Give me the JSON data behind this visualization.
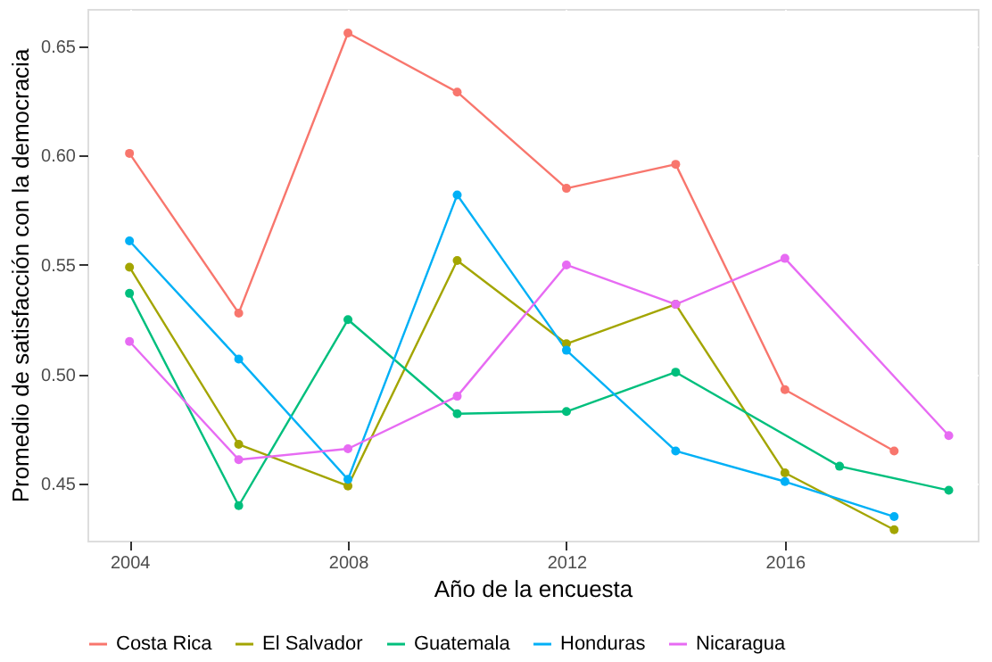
{
  "chart_data": {
    "type": "line",
    "xlabel": "Año de la encuesta",
    "ylabel": "Promedio de satisfacción con la democracia",
    "xlim": [
      2003.23,
      2019.53
    ],
    "xticks": [
      2004,
      2008,
      2012,
      2016
    ],
    "ylim": [
      0.424,
      0.667
    ],
    "yticks": [
      {
        "value": 0.45,
        "label": "0.45"
      },
      {
        "value": 0.5,
        "label": "0.50"
      },
      {
        "value": 0.55,
        "label": "0.55"
      },
      {
        "value": 0.6,
        "label": "0.60"
      },
      {
        "value": 0.65,
        "label": "0.65"
      }
    ],
    "grid": true,
    "legend": "bottom",
    "marker": "circle",
    "line_style": "solid",
    "series": [
      {
        "name": "Costa Rica",
        "color": "#f8766d",
        "x": [
          2004,
          2006,
          2008,
          2010,
          2012,
          2014,
          2016,
          2018
        ],
        "values": [
          0.601,
          0.528,
          0.656,
          0.629,
          0.585,
          0.596,
          0.493,
          0.465
        ]
      },
      {
        "name": "El Salvador",
        "color": "#a3a500",
        "x": [
          2004,
          2006,
          2008,
          2010,
          2012,
          2014,
          2016,
          2018
        ],
        "values": [
          0.549,
          0.468,
          0.449,
          0.552,
          0.514,
          0.532,
          0.455,
          0.429
        ]
      },
      {
        "name": "Guatemala",
        "color": "#00bf7d",
        "x": [
          2004,
          2006,
          2008,
          2010,
          2012,
          2014,
          2017,
          2019
        ],
        "values": [
          0.537,
          0.44,
          0.525,
          0.482,
          0.483,
          0.501,
          0.458,
          0.447
        ]
      },
      {
        "name": "Honduras",
        "color": "#00b0f6",
        "x": [
          2004,
          2006,
          2008,
          2010,
          2012,
          2014,
          2016,
          2018
        ],
        "values": [
          0.561,
          0.507,
          0.452,
          0.582,
          0.511,
          0.465,
          0.451,
          0.435
        ]
      },
      {
        "name": "Nicaragua",
        "color": "#e76bf3",
        "x": [
          2004,
          2006,
          2008,
          2010,
          2012,
          2014,
          2016,
          2019
        ],
        "values": [
          0.515,
          0.461,
          0.466,
          0.49,
          0.55,
          0.532,
          0.553,
          0.472
        ]
      }
    ]
  }
}
